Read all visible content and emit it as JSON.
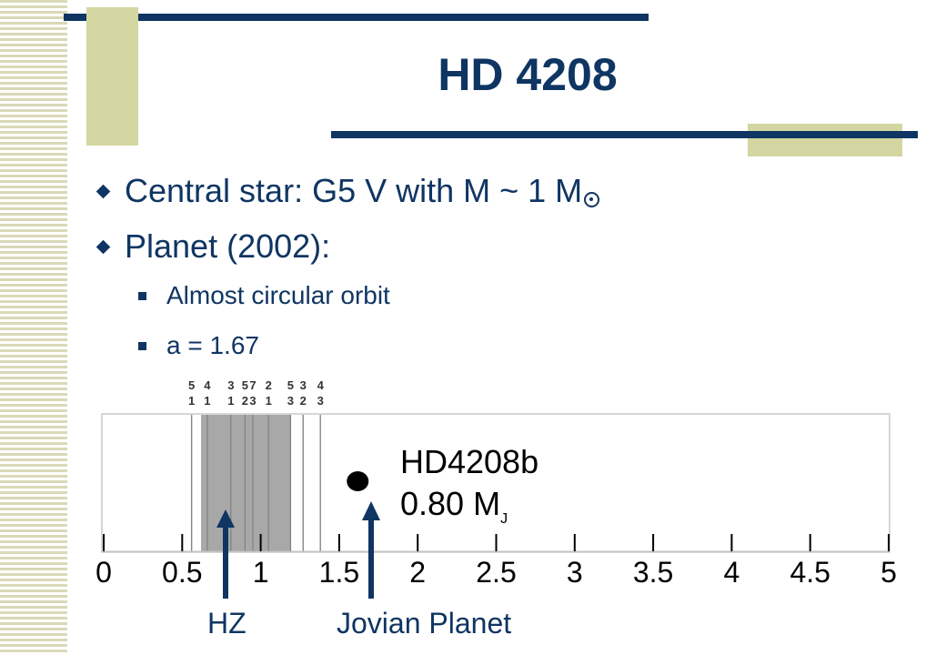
{
  "title": "HD 4208",
  "bullets": [
    {
      "text": "Central star: G5 V with M ~ 1 M",
      "symbol": "sun-icon"
    },
    {
      "text": "Planet (2002):"
    }
  ],
  "sub_bullets": [
    "Almost circular orbit",
    "a = 1.67"
  ],
  "colors": {
    "accent": "#0f3562",
    "decor": "#d4d6a1",
    "hz_band": "#a8a8a8"
  },
  "figure": {
    "axis_ticks": [
      "0",
      "0.5",
      "1",
      "1.5",
      "2",
      "2.5",
      "3",
      "3.5",
      "4",
      "4.5",
      "5"
    ],
    "resonances": [
      {
        "n": "5",
        "d": "1",
        "a": 0.56
      },
      {
        "n": "4",
        "d": "1",
        "a": 0.66
      },
      {
        "n": "3",
        "d": "1",
        "a": 0.81
      },
      {
        "n": "5",
        "d": "2",
        "a": 0.9
      },
      {
        "n": "7",
        "d": "3",
        "a": 0.95
      },
      {
        "n": "2",
        "d": "1",
        "a": 1.05
      },
      {
        "n": "5",
        "d": "3",
        "a": 1.19
      },
      {
        "n": "3",
        "d": "2",
        "a": 1.27
      },
      {
        "n": "4",
        "d": "3",
        "a": 1.38
      }
    ],
    "hz_range": [
      0.62,
      1.19
    ],
    "planet": {
      "name": "HD4208b",
      "mass": "0.80",
      "unit": "M",
      "unit_sub": "J",
      "a": 1.67
    }
  },
  "callouts": {
    "hz": "HZ",
    "jovian": "Jovian Planet"
  }
}
